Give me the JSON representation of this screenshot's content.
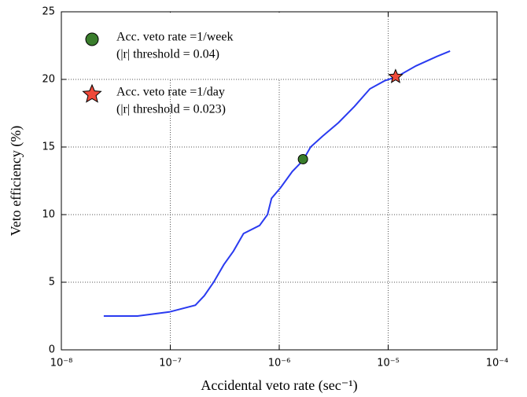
{
  "chart_data": {
    "type": "line",
    "x_label": "Accidental veto rate (sec⁻¹)",
    "y_label": "Veto efficiency (%)",
    "x": [
      2.45e-08,
      5e-08,
      9.8e-08,
      1.7e-07,
      2.05e-07,
      2.5e-07,
      3.1e-07,
      3.8e-07,
      4.7e-07,
      6.6e-07,
      7.8e-07,
      8.5e-07,
      1.03e-06,
      1.32e-06,
      1.65e-06,
      1.94e-06,
      2.5e-06,
      3.5e-06,
      4.9e-06,
      6.8e-06,
      9.3e-06,
      1.2e-05,
      1.8e-05,
      2.8e-05,
      3.7e-05
    ],
    "values": [
      2.5,
      2.5,
      2.8,
      3.3,
      4.0,
      5.0,
      6.3,
      7.3,
      8.6,
      9.2,
      10.0,
      11.2,
      12.0,
      13.2,
      14.0,
      15.0,
      15.8,
      16.8,
      18.0,
      19.3,
      19.9,
      20.2,
      21.0,
      21.7,
      22.1
    ],
    "color": "#2a3bf0",
    "xscale": "log",
    "xlim": [
      1e-08,
      0.0001
    ],
    "xticks": [
      {
        "value": 1e-08,
        "label": "10⁻⁸"
      },
      {
        "value": 1e-07,
        "label": "10⁻⁷"
      },
      {
        "value": 1e-06,
        "label": "10⁻⁶"
      },
      {
        "value": 1e-05,
        "label": "10⁻⁵"
      },
      {
        "value": 0.0001,
        "label": "10⁻⁴"
      }
    ],
    "ylim": [
      0,
      25
    ],
    "yticks": [
      0,
      5,
      10,
      15,
      20,
      25
    ],
    "grid": true,
    "markers": [
      {
        "shape": "circle",
        "color": "#3a7d2c",
        "x": 1.65e-06,
        "y": 14.1,
        "label": [
          "Acc. veto rate =1/week",
          "(|r| threshold = 0.04)"
        ]
      },
      {
        "shape": "star",
        "color": "#f04a3a",
        "x": 1.17e-05,
        "y": 20.2,
        "label": [
          "Acc. veto rate =1/day",
          "(|r| threshold = 0.023)"
        ]
      }
    ]
  }
}
